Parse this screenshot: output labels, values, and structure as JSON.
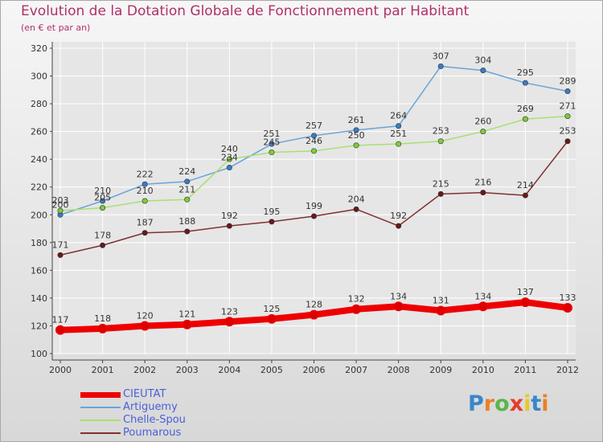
{
  "title": "Evolution de la Dotation Globale de Fonctionnement par Habitant",
  "subtitle": "(en € et par an)",
  "logo": {
    "text": "Proxiti",
    "colors": [
      "#3a86c8",
      "#e8812a",
      "#58b848",
      "#e83a2a",
      "#e8c82a",
      "#3a86c8",
      "#e8812a"
    ]
  },
  "colors": {
    "title": "#b0306a",
    "axis_text": "#333333",
    "grid": "#ffffff",
    "legend_text": "#4a5fd8"
  },
  "chart_data": {
    "type": "line",
    "title": "Evolution de la Dotation Globale de Fonctionnement par Habitant",
    "subtitle": "(en € et par an)",
    "xlabel": "",
    "ylabel": "",
    "x": [
      "2000",
      "2001",
      "2002",
      "2003",
      "2004",
      "2005",
      "2006",
      "2007",
      "2008",
      "2009",
      "2010",
      "2011",
      "2012"
    ],
    "ylim": [
      100,
      320
    ],
    "yticks": [
      100,
      120,
      140,
      160,
      180,
      200,
      220,
      240,
      260,
      280,
      300,
      320
    ],
    "grid": true,
    "legend": "bottom-left",
    "series": [
      {
        "name": "CIEUTAT",
        "color": "#ee0000",
        "width": 8,
        "values": [
          117,
          118,
          120,
          121,
          123,
          125,
          128,
          132,
          134,
          131,
          134,
          137,
          133
        ]
      },
      {
        "name": "Artiguemy",
        "color": "#6aa4d8",
        "marker": "#3a7cc4",
        "width": 1.5,
        "values": [
          200,
          210,
          222,
          224,
          234,
          251,
          257,
          261,
          264,
          307,
          304,
          295,
          289
        ]
      },
      {
        "name": "Chelle-Spou",
        "color": "#a8e070",
        "marker": "#7ccc3c",
        "width": 1.5,
        "values": [
          203,
          205,
          210,
          211,
          240,
          245,
          246,
          250,
          251,
          253,
          260,
          269,
          271
        ]
      },
      {
        "name": "Poumarous",
        "color": "#803030",
        "marker": "#6a1818",
        "width": 1.5,
        "values": [
          171,
          178,
          187,
          188,
          192,
          195,
          199,
          204,
          192,
          215,
          216,
          214,
          253
        ]
      }
    ],
    "data_labels": [
      {
        "series": "CIEUTAT",
        "labels": [
          "117",
          "118",
          "120",
          "121",
          "123",
          "125",
          "128",
          "132",
          "134",
          "131",
          "134",
          "137",
          "133"
        ]
      },
      {
        "series": "Artiguemy",
        "labels": [
          "200",
          "210",
          "222",
          "224",
          "234",
          "251",
          "257",
          "261",
          "264",
          "307",
          "304",
          "295",
          "289"
        ]
      },
      {
        "series": "Chelle-Spou",
        "labels": [
          "203",
          "205",
          "210",
          "211",
          "240",
          "245",
          "246",
          "250",
          "251",
          "253",
          "260",
          "269",
          "271"
        ]
      },
      {
        "series": "Poumarous",
        "labels": [
          "171",
          "178",
          "187",
          "188",
          "192",
          "195",
          "199",
          "204",
          "192",
          "215",
          "216",
          "214",
          "253"
        ]
      }
    ]
  }
}
